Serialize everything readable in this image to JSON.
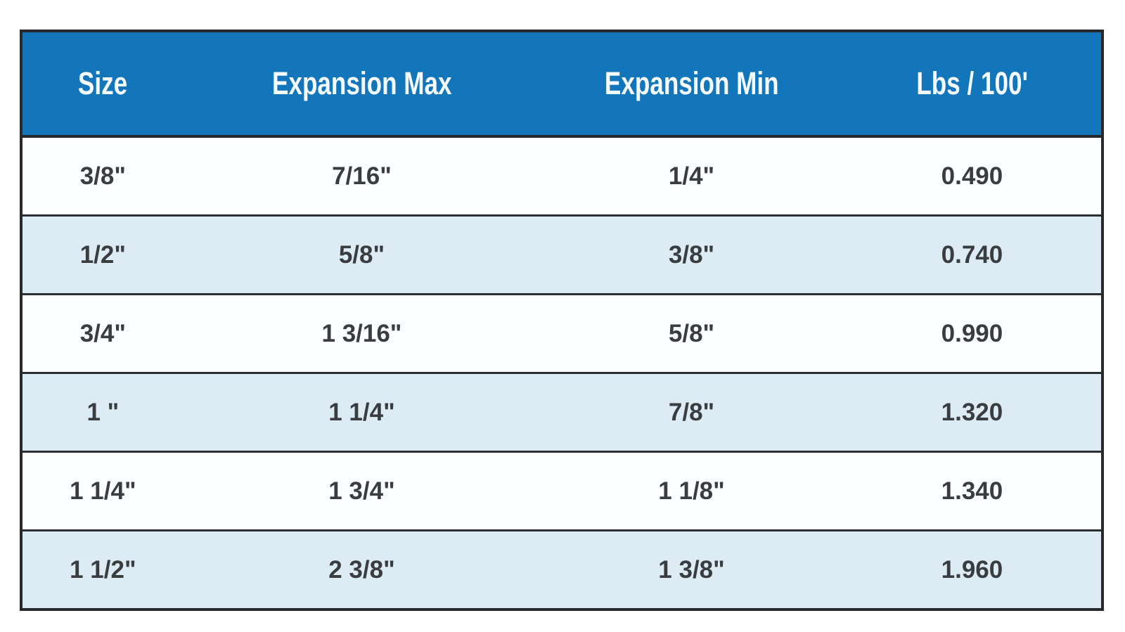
{
  "table": {
    "title_semantic": "expansion-sleeving-specification-table",
    "columns": [
      {
        "label": "Size"
      },
      {
        "label": "Expansion Max"
      },
      {
        "label": "Expansion Min"
      },
      {
        "label": "Lbs / 100'"
      }
    ],
    "rows": [
      {
        "size": "3/8\"",
        "expansion_max": "7/16\"",
        "expansion_min": "1/4\"",
        "lbs_per_100ft": "0.490"
      },
      {
        "size": "1/2\"",
        "expansion_max": "5/8\"",
        "expansion_min": "3/8\"",
        "lbs_per_100ft": "0.740"
      },
      {
        "size": "3/4\"",
        "expansion_max": "1 3/16\"",
        "expansion_min": "5/8\"",
        "lbs_per_100ft": "0.990"
      },
      {
        "size": "1 \"",
        "expansion_max": "1 1/4\"",
        "expansion_min": "7/8\"",
        "lbs_per_100ft": "1.320"
      },
      {
        "size": "1 1/4\"",
        "expansion_max": "1 3/4\"",
        "expansion_min": "1 1/8\"",
        "lbs_per_100ft": "1.340"
      },
      {
        "size": "1 1/2\"",
        "expansion_max": "2 3/8\"",
        "expansion_min": "1 3/8\"",
        "lbs_per_100ft": "1.960"
      }
    ],
    "colors": {
      "header_bg": "#1375ba",
      "header_text": "#f6fbff",
      "row_bg": "#fdfeff",
      "row_alt_bg": "#dcebf4",
      "separator": "#2b2e31",
      "outer_border": "#26282b",
      "cell_text": "#3a3d40"
    }
  }
}
